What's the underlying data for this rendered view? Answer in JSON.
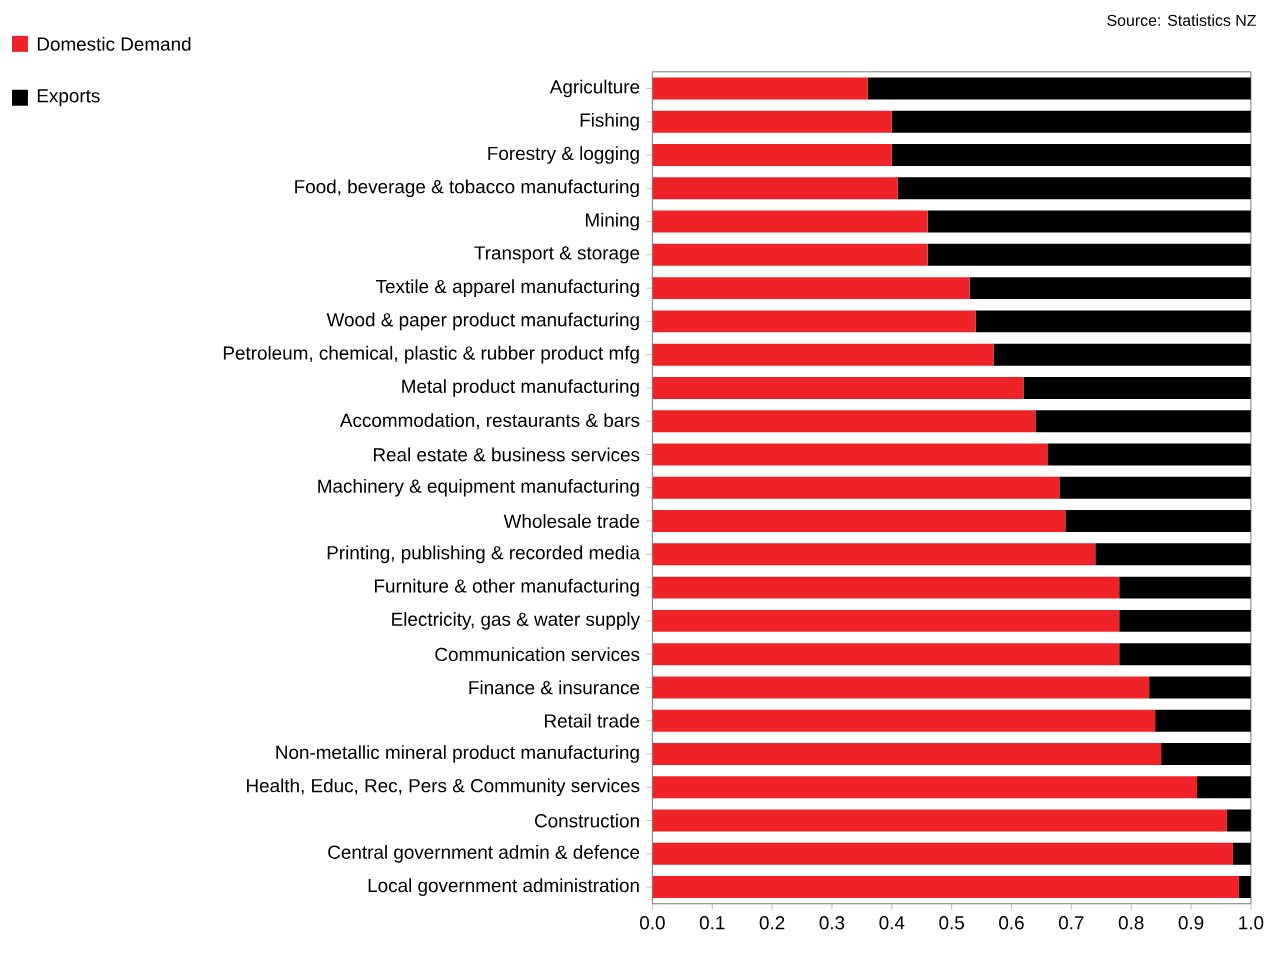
{
  "chart_data": {
    "type": "bar",
    "orientation": "horizontal",
    "stacked": true,
    "categories": [
      "Agriculture",
      "Fishing",
      "Forestry & logging",
      "Food, beverage & tobacco manufacturing",
      "Mining",
      "Transport & storage",
      "Textile & apparel manufacturing",
      "Wood & paper product manufacturing",
      "Petroleum, chemical, plastic & rubber product mfg",
      "Metal product manufacturing",
      "Accommodation, restaurants & bars",
      "Real estate & business services",
      "Machinery & equipment manufacturing",
      "Wholesale trade",
      "Printing, publishing & recorded media",
      "Furniture & other manufacturing",
      "Electricity, gas & water supply",
      "Communication services",
      "Finance & insurance",
      "Retail trade",
      "Non-metallic mineral product manufacturing",
      "Health, Educ, Rec, Pers & Community services",
      "Construction",
      "Central government admin & defence",
      "Local government administration"
    ],
    "series": [
      {
        "name": "Domestic Demand",
        "color": "#ee2227",
        "values": [
          0.36,
          0.4,
          0.4,
          0.41,
          0.46,
          0.46,
          0.53,
          0.54,
          0.57,
          0.62,
          0.64,
          0.66,
          0.68,
          0.69,
          0.74,
          0.78,
          0.78,
          0.78,
          0.83,
          0.84,
          0.85,
          0.91,
          0.96,
          0.97,
          0.98
        ]
      },
      {
        "name": "Exports",
        "color": "#000000",
        "values": [
          0.64,
          0.6,
          0.6,
          0.59,
          0.54,
          0.54,
          0.47,
          0.46,
          0.43,
          0.38,
          0.36,
          0.34,
          0.32,
          0.31,
          0.26,
          0.22,
          0.22,
          0.22,
          0.17,
          0.16,
          0.15,
          0.09,
          0.04,
          0.03,
          0.02
        ]
      }
    ],
    "xlim": [
      0,
      1
    ],
    "xticks": [
      {
        "value": 0,
        "label": "0.0"
      },
      {
        "value": 0.1,
        "label": "0.1"
      },
      {
        "value": 0.2,
        "label": "0.2"
      },
      {
        "value": 0.3,
        "label": "0.3"
      },
      {
        "value": 0.4,
        "label": "0.4"
      },
      {
        "value": 0.5,
        "label": "0.5"
      },
      {
        "value": 0.6,
        "label": "0.6"
      },
      {
        "value": 0.7,
        "label": "0.7"
      },
      {
        "value": 0.8,
        "label": "0.8"
      },
      {
        "value": 0.9,
        "label": "0.9"
      },
      {
        "value": 1,
        "label": "1.0"
      }
    ],
    "legend": "top left",
    "grid": false,
    "annotations": [
      "Source: Statistics NZ"
    ]
  }
}
